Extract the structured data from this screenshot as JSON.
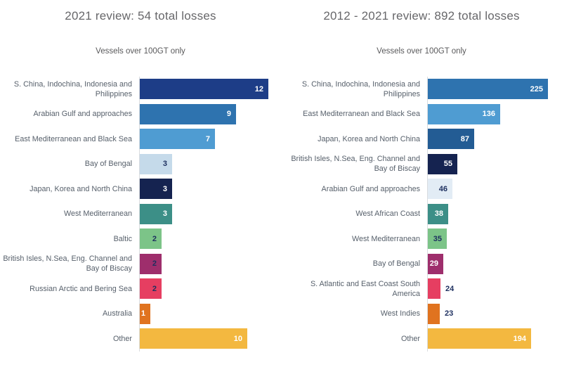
{
  "colors": {
    "background": "#ffffff",
    "title_text": "#67676a",
    "subtitle_text": "#59595b",
    "category_label_text": "#57606b",
    "value_dark_navy": "#1d2f5f",
    "value_white": "#ffffff",
    "axis_line": "#d9dcdf"
  },
  "chart_data": [
    {
      "type": "bar",
      "orientation": "horizontal",
      "title": "2021 review: 54 total losses",
      "subtitle": "Vessels over 100GT only",
      "total_losses": 54,
      "xlabel": "",
      "ylabel": "",
      "xlim": [
        0,
        12
      ],
      "grid": false,
      "legend": "none",
      "value_labels": "shown-on-bars",
      "categories": [
        "S. China, Indochina, Indonesia and Philippines",
        "Arabian Gulf and approaches",
        "East Mediterranean and Black Sea",
        "Bay of Bengal",
        "Japan, Korea and North China",
        "West Mediterranean",
        "Baltic",
        "British Isles, N.Sea, Eng. Channel and Bay of Biscay",
        "Russian Arctic and Bering Sea",
        "Australia",
        "Other"
      ],
      "values": [
        12,
        9,
        7,
        3,
        3,
        3,
        2,
        2,
        2,
        1,
        10
      ],
      "bar_colors": [
        "#1d3d87",
        "#2e73af",
        "#4f9cd2",
        "#c5daea",
        "#152350",
        "#3c8f87",
        "#7cc488",
        "#9e2e6c",
        "#e63e61",
        "#e0731f",
        "#f3b840"
      ],
      "value_label_colors": [
        "#ffffff",
        "#ffffff",
        "#ffffff",
        "#1d2f5f",
        "#ffffff",
        "#ffffff",
        "#1d2f5f",
        "#1d2f5f",
        "#1d2f5f",
        "#ffffff",
        "#ffffff"
      ],
      "value_label_outside": [
        false,
        false,
        false,
        false,
        false,
        false,
        false,
        false,
        false,
        false,
        false
      ]
    },
    {
      "type": "bar",
      "orientation": "horizontal",
      "title": "2012 - 2021 review: 892 total losses",
      "subtitle": "Vessels over 100GT only",
      "total_losses": 892,
      "xlabel": "",
      "ylabel": "",
      "xlim": [
        0,
        225
      ],
      "grid": false,
      "legend": "none",
      "value_labels": "shown-on-bars",
      "categories": [
        "S. China, Indochina, Indonesia and Philippines",
        "East Mediterranean and Black Sea",
        "Japan, Korea and North China",
        "British Isles, N.Sea, Eng. Channel and Bay of Biscay",
        "Arabian Gulf and approaches",
        "West African Coast",
        "West Mediterranean",
        "Bay of Bengal",
        "S. Atlantic and East Coast South America",
        "West Indies",
        "Other"
      ],
      "values": [
        225,
        136,
        87,
        55,
        46,
        38,
        35,
        29,
        24,
        23,
        194
      ],
      "bar_colors": [
        "#2e73af",
        "#4f9cd2",
        "#235c94",
        "#152350",
        "#e2ecf5",
        "#3c8f87",
        "#7cc488",
        "#9e2e6c",
        "#e63e61",
        "#e0731f",
        "#f3b840"
      ],
      "value_label_colors": [
        "#ffffff",
        "#ffffff",
        "#ffffff",
        "#ffffff",
        "#1d2f5f",
        "#ffffff",
        "#1d2f5f",
        "#ffffff",
        "#1d2f5f",
        "#1d2f5f",
        "#ffffff"
      ],
      "value_label_outside": [
        false,
        false,
        false,
        false,
        false,
        false,
        false,
        false,
        true,
        true,
        false
      ]
    }
  ]
}
